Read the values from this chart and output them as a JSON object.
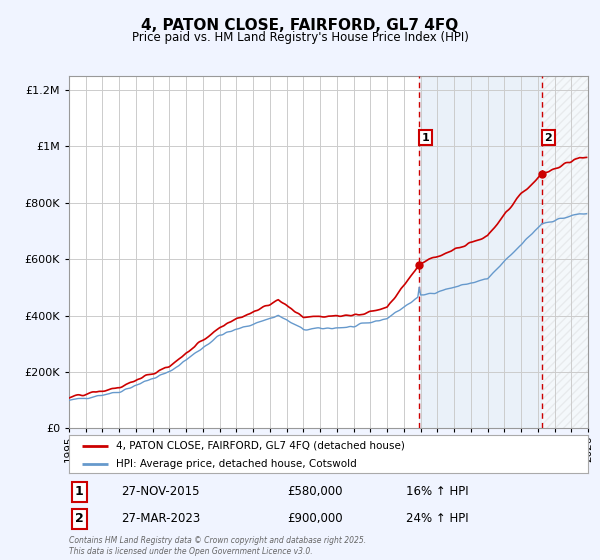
{
  "title": "4, PATON CLOSE, FAIRFORD, GL7 4FQ",
  "subtitle": "Price paid vs. HM Land Registry's House Price Index (HPI)",
  "footer": "Contains HM Land Registry data © Crown copyright and database right 2025.\nThis data is licensed under the Open Government Licence v3.0.",
  "legend_line1": "4, PATON CLOSE, FAIRFORD, GL7 4FQ (detached house)",
  "legend_line2": "HPI: Average price, detached house, Cotswold",
  "sale1_label": "1",
  "sale1_date": "27-NOV-2015",
  "sale1_price": "£580,000",
  "sale1_hpi": "16% ↑ HPI",
  "sale1_year": 2015.917,
  "sale2_label": "2",
  "sale2_date": "27-MAR-2023",
  "sale2_price": "£900,000",
  "sale2_hpi": "24% ↑ HPI",
  "sale2_year": 2023.25,
  "ylim": [
    0,
    1250000
  ],
  "xlim_start": 1995,
  "xlim_end": 2026,
  "red_color": "#cc0000",
  "blue_color": "#6699cc",
  "background_color": "#f0f4ff",
  "plot_bg_color": "#ffffff",
  "grid_color": "#cccccc",
  "shade_color": "#dce8f5",
  "hatch_color": "#cccccc"
}
